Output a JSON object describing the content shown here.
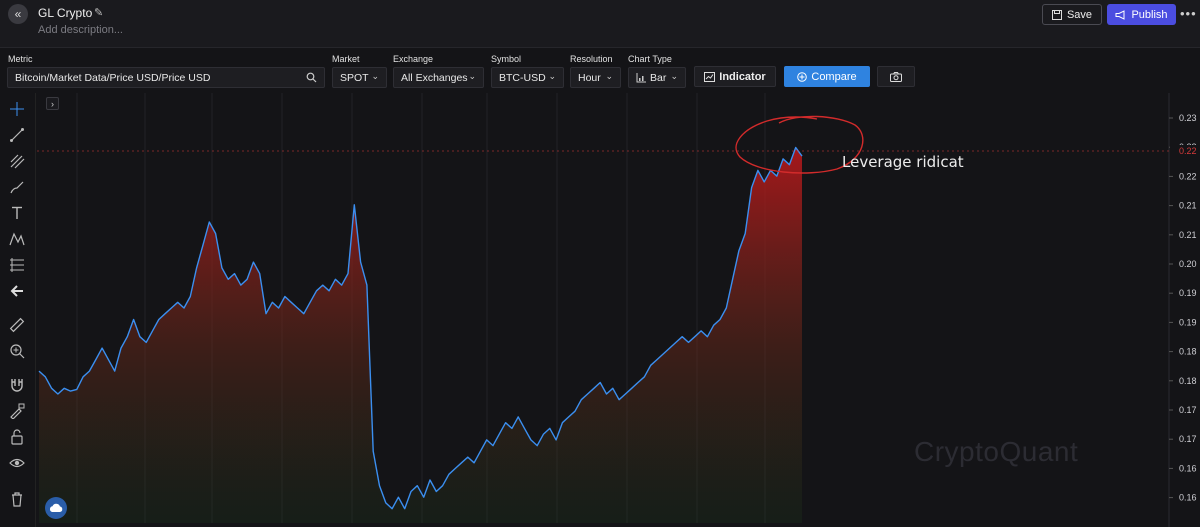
{
  "header": {
    "title": "GL Crypto",
    "description_placeholder": "Add description...",
    "save_label": "Save",
    "publish_label": "Publish",
    "more_label": "•••"
  },
  "controls": {
    "metric_label": "Metric",
    "metric_value": "Bitcoin/Market Data/Price USD/Price USD",
    "market_label": "Market",
    "market_value": "SPOT",
    "exchange_label": "Exchange",
    "exchange_value": "All Exchanges",
    "symbol_label": "Symbol",
    "symbol_value": "BTC-USD",
    "resolution_label": "Resolution",
    "resolution_value": "Hour",
    "chart_type_label": "Chart Type",
    "chart_type_value": "Bar",
    "indicator_label": "Indicator",
    "compare_label": "Compare"
  },
  "annotation_text": "Leverage ridicat",
  "watermark": "CryptoQuant",
  "colors": {
    "line": "#3b8ff0",
    "accent": "#2f83e0",
    "publish": "#4b4de0",
    "current_price": "#d63a3a",
    "annotation_circle": "#d22b2b"
  },
  "chart_data": {
    "type": "area",
    "ytick_labels": [
      "0.23",
      "0.22",
      "0.22",
      "0.21",
      "0.21",
      "0.20",
      "0.19",
      "0.19",
      "0.18",
      "0.18",
      "0.17",
      "0.17",
      "0.16",
      "0.16"
    ],
    "current_value_label": "0.22",
    "ylim": [
      0.1575,
      0.2325
    ],
    "grid": true,
    "series": [
      {
        "values": [
          0.184,
          0.183,
          0.181,
          0.18,
          0.181,
          0.1805,
          0.1808,
          0.183,
          0.184,
          0.186,
          0.188,
          0.186,
          0.184,
          0.188,
          0.19,
          0.193,
          0.19,
          0.189,
          0.191,
          0.193,
          0.194,
          0.195,
          0.196,
          0.195,
          0.197,
          0.202,
          0.206,
          0.21,
          0.208,
          0.202,
          0.2,
          0.201,
          0.199,
          0.2,
          0.203,
          0.201,
          0.194,
          0.196,
          0.195,
          0.197,
          0.196,
          0.195,
          0.194,
          0.196,
          0.198,
          0.199,
          0.198,
          0.2,
          0.199,
          0.201,
          0.213,
          0.203,
          0.199,
          0.17,
          0.164,
          0.161,
          0.16,
          0.162,
          0.16,
          0.163,
          0.164,
          0.162,
          0.165,
          0.163,
          0.164,
          0.166,
          0.167,
          0.168,
          0.169,
          0.168,
          0.17,
          0.172,
          0.171,
          0.173,
          0.175,
          0.174,
          0.176,
          0.174,
          0.172,
          0.171,
          0.173,
          0.174,
          0.172,
          0.175,
          0.176,
          0.177,
          0.179,
          0.18,
          0.181,
          0.182,
          0.18,
          0.181,
          0.179,
          0.18,
          0.181,
          0.182,
          0.183,
          0.185,
          0.186,
          0.187,
          0.188,
          0.189,
          0.19,
          0.189,
          0.19,
          0.191,
          0.19,
          0.192,
          0.193,
          0.195,
          0.2,
          0.205,
          0.208,
          0.216,
          0.219,
          0.217,
          0.219,
          0.218,
          0.221,
          0.22,
          0.223,
          0.2215
        ]
      }
    ]
  }
}
